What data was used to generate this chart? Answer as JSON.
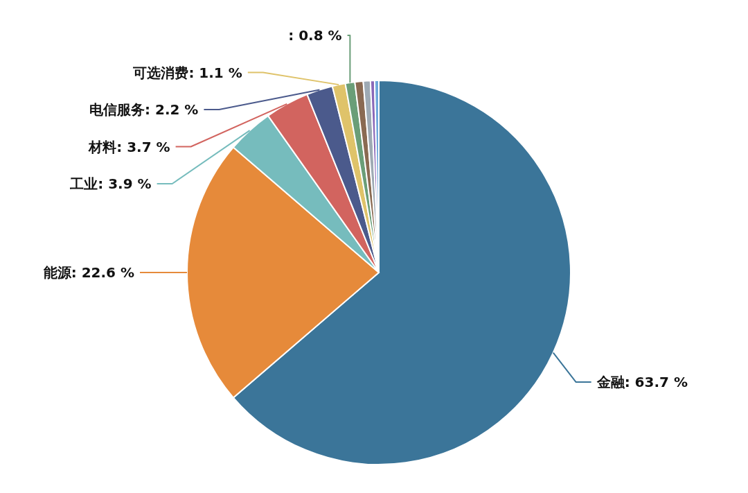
{
  "chart_data": {
    "type": "pie",
    "categories": [
      "金融",
      "能源",
      "工业",
      "材料",
      "电信服务",
      "可选消费",
      null,
      null,
      null,
      null,
      null
    ],
    "values": [
      63.7,
      22.6,
      3.9,
      3.7,
      2.2,
      1.1,
      0.8,
      0.7,
      0.6,
      0.35,
      0.35
    ],
    "value_labels": [
      "63.7 %",
      "22.6 %",
      "3.9 %",
      "3.7 %",
      "2.2 %",
      "1.1 %",
      ": 0.8 %",
      null,
      null,
      null,
      null
    ],
    "colors": [
      "#3b7599",
      "#e68a3a",
      "#76bcbd",
      "#d2645f",
      "#4b5a8c",
      "#dfc36a",
      "#6a9e78",
      "#8a6a52",
      "#9eaab4",
      "#8a68b8",
      "#6fa8dc"
    ]
  }
}
